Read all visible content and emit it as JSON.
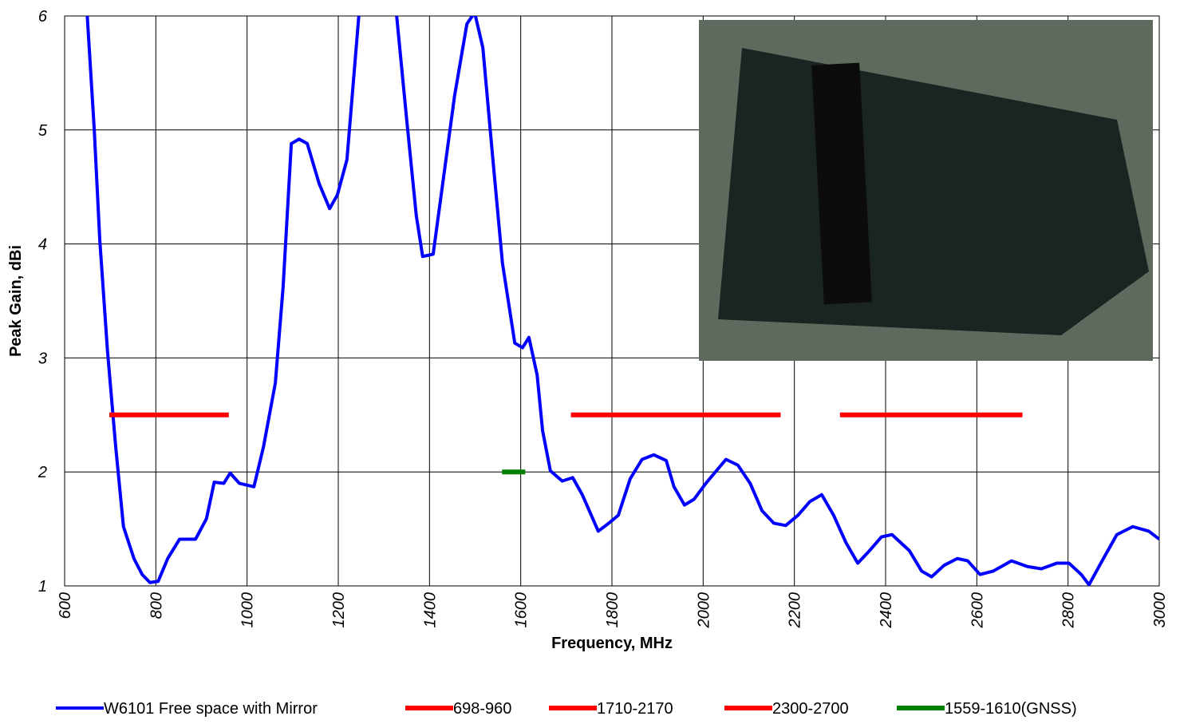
{
  "chart_data": {
    "type": "line",
    "xlabel": "Frequency, MHz",
    "ylabel": "Peak Gain, dBi",
    "xlim": [
      600,
      3000
    ],
    "xticks": [
      600,
      800,
      1000,
      1200,
      1400,
      1600,
      1800,
      2000,
      2200,
      2400,
      2600,
      2800,
      3000
    ],
    "ylim": [
      1,
      6
    ],
    "yticks": [
      1,
      2,
      3,
      4,
      5,
      6
    ],
    "grid": true,
    "legend": "bottom",
    "series": [
      {
        "name": "W6101 Free space with Mirror",
        "color": "#0000ff",
        "x": [
          645,
          665,
          677,
          694,
          712,
          729,
          752,
          770,
          787,
          805,
          826,
          852,
          887,
          911,
          928,
          949,
          963,
          983,
          1015,
          1036,
          1062,
          1079,
          1097,
          1114,
          1132,
          1158,
          1181,
          1198,
          1219,
          1245,
          1254,
          1315,
          1328,
          1350,
          1371,
          1385,
          1408,
          1429,
          1455,
          1482,
          1499,
          1517,
          1539,
          1560,
          1587,
          1604,
          1618,
          1636,
          1648,
          1665,
          1691,
          1714,
          1735,
          1770,
          1793,
          1814,
          1840,
          1866,
          1892,
          1919,
          1936,
          1959,
          1980,
          2006,
          2029,
          2050,
          2076,
          2103,
          2129,
          2155,
          2181,
          2208,
          2234,
          2260,
          2286,
          2313,
          2339,
          2365,
          2391,
          2414,
          2452,
          2479,
          2501,
          2528,
          2557,
          2580,
          2607,
          2636,
          2676,
          2711,
          2741,
          2776,
          2802,
          2829,
          2846,
          2872,
          2907,
          2942,
          2977,
          3000
        ],
        "values": [
          6.3,
          5.0,
          4.04,
          3.06,
          2.22,
          1.52,
          1.24,
          1.1,
          1.03,
          1.04,
          1.24,
          1.41,
          1.41,
          1.59,
          1.91,
          1.9,
          1.99,
          1.9,
          1.87,
          2.22,
          2.78,
          3.62,
          4.88,
          4.92,
          4.88,
          4.53,
          4.31,
          4.43,
          4.74,
          6.0,
          6.5,
          6.5,
          6.0,
          5.09,
          4.25,
          3.89,
          3.91,
          4.53,
          5.3,
          5.93,
          6.03,
          5.72,
          4.74,
          3.83,
          3.13,
          3.09,
          3.18,
          2.85,
          2.36,
          2.01,
          1.92,
          1.95,
          1.8,
          1.48,
          1.55,
          1.62,
          1.94,
          2.11,
          2.15,
          2.1,
          1.87,
          1.71,
          1.76,
          1.9,
          2.01,
          2.11,
          2.06,
          1.9,
          1.66,
          1.55,
          1.53,
          1.62,
          1.74,
          1.8,
          1.62,
          1.38,
          1.2,
          1.31,
          1.43,
          1.45,
          1.31,
          1.13,
          1.08,
          1.18,
          1.24,
          1.22,
          1.1,
          1.13,
          1.22,
          1.17,
          1.15,
          1.2,
          1.2,
          1.1,
          1.01,
          1.2,
          1.45,
          1.52,
          1.48,
          1.41
        ]
      },
      {
        "name": "698-960",
        "color": "#ff0000",
        "x": [
          698,
          960
        ],
        "values": [
          2.5,
          2.5
        ]
      },
      {
        "name": "1710-2170",
        "color": "#ff0000",
        "x": [
          1710,
          2170
        ],
        "values": [
          2.5,
          2.5
        ]
      },
      {
        "name": "2300-2700",
        "color": "#ff0000",
        "x": [
          2300,
          2700
        ],
        "values": [
          2.5,
          2.5
        ]
      },
      {
        "name": "1559-1610(GNSS)",
        "color": "#008000",
        "x": [
          1559,
          1610
        ],
        "values": [
          2.0,
          2.0
        ]
      }
    ]
  }
}
